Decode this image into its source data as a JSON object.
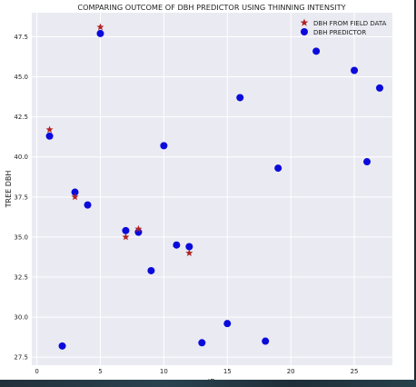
{
  "chart_data": {
    "type": "scatter",
    "title": "COMPARING OUTCOME OF  DBH PREDICTOR USING THINNING INTENSITY",
    "xlabel": "ID",
    "ylabel": "TREE DBH",
    "xlim": [
      -0.4,
      28
    ],
    "ylim": [
      27.0,
      49.0
    ],
    "x_ticks": [
      0,
      5,
      10,
      15,
      20,
      25
    ],
    "y_ticks": [
      27.5,
      30.0,
      32.5,
      35.0,
      37.5,
      40.0,
      42.5,
      45.0,
      47.5
    ],
    "y_tick_labels": [
      "27.5",
      "30.0",
      "32.5",
      "35.0",
      "37.5",
      "40.0",
      "42.5",
      "45.0",
      "47.5"
    ],
    "grid": true,
    "background_color": "#eaeaf2",
    "legend_position": "top-right",
    "series": [
      {
        "name": "DBH FROM FIELD DATA",
        "marker": "star",
        "color": "#b22222",
        "x": [
          1,
          3,
          5,
          7,
          8,
          12
        ],
        "y": [
          41.7,
          37.5,
          48.1,
          35.0,
          35.5,
          34.0
        ]
      },
      {
        "name": "DBH PREDICTOR",
        "marker": "circle",
        "color": "#0a0adc",
        "x": [
          1,
          2,
          3,
          4,
          5,
          7,
          8,
          9,
          10,
          11,
          12,
          13,
          15,
          16,
          18,
          19,
          22,
          25,
          26,
          27
        ],
        "y": [
          41.3,
          28.2,
          37.8,
          37.0,
          47.7,
          35.4,
          35.3,
          32.9,
          40.7,
          34.5,
          34.4,
          28.4,
          29.6,
          43.7,
          28.5,
          39.3,
          46.6,
          45.4,
          39.7,
          44.3
        ]
      }
    ]
  }
}
